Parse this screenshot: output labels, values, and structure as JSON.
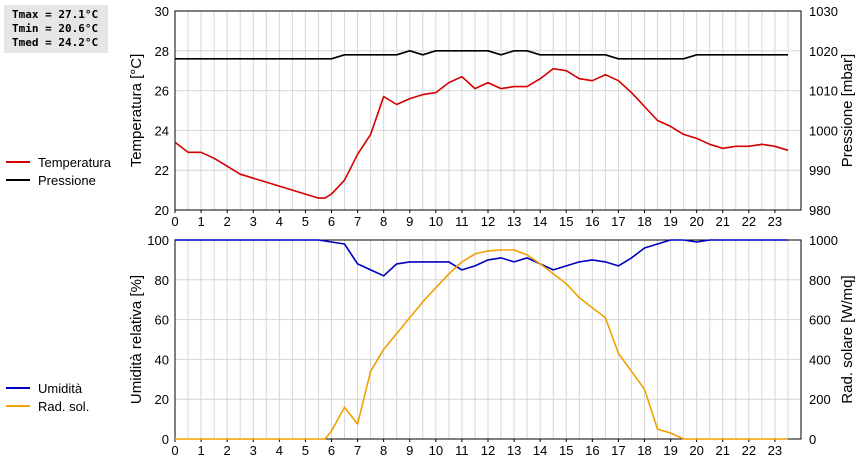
{
  "stats": {
    "tmax": "Tmax = 27.1°C",
    "tmin": "Tmin = 20.6°C",
    "tmed": "Tmed = 24.2°C"
  },
  "legend_top": [
    {
      "label": "Temperatura",
      "color": "#d40000"
    },
    {
      "label": "Pressione",
      "color": "#000000"
    }
  ],
  "legend_bottom": [
    {
      "label": "Umidità",
      "color": "#0000c0"
    },
    {
      "label": "Rad. sol.",
      "color": "#f0a000"
    }
  ],
  "chart_data": [
    {
      "type": "line",
      "xlim": [
        0,
        24
      ],
      "x_ticks": [
        "0",
        "1",
        "2",
        "3",
        "4",
        "5",
        "6",
        "7",
        "8",
        "9",
        "10",
        "11",
        "12",
        "13",
        "14",
        "15",
        "16",
        "17",
        "18",
        "19",
        "20",
        "21",
        "22",
        "23"
      ],
      "ylabel": "Temperatura [°C]",
      "ylim": [
        20,
        30
      ],
      "y_ticks": [
        "20",
        "22",
        "24",
        "26",
        "28",
        "30"
      ],
      "y2label": "Pressione [mbar]",
      "y2lim": [
        980,
        1030
      ],
      "y2_ticks": [
        "980",
        "990",
        "1000",
        "1010",
        "1020",
        "1030"
      ],
      "grid": true,
      "series": [
        {
          "name": "Temperatura",
          "axis": "left",
          "color": "#d40000",
          "x": [
            0,
            0.5,
            1,
            1.5,
            2,
            2.5,
            3,
            3.5,
            4,
            4.5,
            5,
            5.5,
            5.75,
            6,
            6.5,
            7,
            7.5,
            8,
            8.5,
            9,
            9.5,
            10,
            10.5,
            11,
            11.5,
            12,
            12.5,
            13,
            13.5,
            14,
            14.5,
            15,
            15.5,
            16,
            16.5,
            17,
            17.5,
            18,
            18.5,
            19,
            19.5,
            20,
            20.5,
            21,
            21.5,
            22,
            22.5,
            23,
            23.5
          ],
          "values": [
            23.4,
            22.9,
            22.9,
            22.6,
            22.2,
            21.8,
            21.6,
            21.4,
            21.2,
            21.0,
            20.8,
            20.6,
            20.6,
            20.8,
            21.5,
            22.8,
            23.8,
            25.7,
            25.3,
            25.6,
            25.8,
            25.9,
            26.4,
            26.7,
            26.1,
            26.4,
            26.1,
            26.2,
            26.2,
            26.6,
            27.1,
            27.0,
            26.6,
            26.5,
            26.8,
            26.5,
            25.9,
            25.2,
            24.5,
            24.2,
            23.8,
            23.6,
            23.3,
            23.1,
            23.2,
            23.2,
            23.3,
            23.2,
            23.0
          ]
        },
        {
          "name": "Pressione",
          "axis": "right",
          "color": "#000000",
          "x": [
            0,
            1,
            2,
            3,
            4,
            5,
            5.5,
            6,
            6.5,
            7,
            7.5,
            8,
            8.5,
            9,
            9.5,
            10,
            10.5,
            11,
            11.5,
            12,
            12.5,
            13,
            13.5,
            14,
            14.5,
            15,
            15.5,
            16,
            16.5,
            17,
            17.5,
            18,
            18.5,
            19,
            19.5,
            20,
            20.5,
            21,
            21.5,
            22,
            22.5,
            23,
            23.5
          ],
          "values": [
            1018,
            1018,
            1018,
            1018,
            1018,
            1018,
            1018,
            1018,
            1019,
            1019,
            1019,
            1019,
            1019,
            1020,
            1019,
            1020,
            1020,
            1020,
            1020,
            1020,
            1019,
            1020,
            1020,
            1019,
            1019,
            1019,
            1019,
            1019,
            1019,
            1018,
            1018,
            1018,
            1018,
            1018,
            1018,
            1019,
            1019,
            1019,
            1019,
            1019,
            1019,
            1019,
            1019
          ]
        }
      ]
    },
    {
      "type": "line",
      "xlim": [
        0,
        24
      ],
      "x_ticks": [
        "0",
        "1",
        "2",
        "3",
        "4",
        "5",
        "6",
        "7",
        "8",
        "9",
        "10",
        "11",
        "12",
        "13",
        "14",
        "15",
        "16",
        "17",
        "18",
        "19",
        "20",
        "21",
        "22",
        "23"
      ],
      "ylabel": "Umidità relativa [%]",
      "ylim": [
        0,
        100
      ],
      "y_ticks": [
        "0",
        "20",
        "40",
        "60",
        "80",
        "100"
      ],
      "y2label": "Rad. solare [W/mq]",
      "y2lim": [
        0,
        1000
      ],
      "y2_ticks": [
        "0",
        "200",
        "400",
        "600",
        "800",
        "1000"
      ],
      "grid": true,
      "series": [
        {
          "name": "Umidità",
          "axis": "left",
          "color": "#0000c0",
          "x": [
            0,
            1,
            2,
            3,
            4,
            5,
            5.5,
            6,
            6.5,
            7,
            7.5,
            8,
            8.5,
            9,
            9.5,
            10,
            10.5,
            11,
            11.5,
            12,
            12.5,
            13,
            13.5,
            14,
            14.5,
            15,
            15.5,
            16,
            16.5,
            17,
            17.5,
            18,
            18.5,
            19,
            19.5,
            20,
            20.5,
            21,
            21.5,
            22,
            22.5,
            23,
            23.5
          ],
          "values": [
            100,
            100,
            100,
            100,
            100,
            100,
            100,
            99,
            98,
            88,
            85,
            82,
            88,
            89,
            89,
            89,
            89,
            85,
            87,
            90,
            91,
            89,
            91,
            88,
            85,
            87,
            89,
            90,
            89,
            87,
            91,
            96,
            98,
            100,
            100,
            99,
            100,
            100,
            100,
            100,
            100,
            100,
            100
          ]
        },
        {
          "name": "Rad. sol.",
          "axis": "right",
          "color": "#f0a000",
          "x": [
            0,
            1,
            2,
            3,
            4,
            5,
            5.5,
            5.75,
            6,
            6.5,
            7,
            7.5,
            8,
            8.5,
            9,
            9.5,
            10,
            10.5,
            11,
            11.5,
            12,
            12.5,
            13,
            13.5,
            14,
            14.5,
            15,
            15.5,
            16,
            16.5,
            17,
            17.5,
            18,
            18.5,
            19,
            19.5,
            20,
            21,
            22,
            23,
            23.5
          ],
          "values": [
            0,
            0,
            0,
            0,
            0,
            0,
            0,
            0,
            40,
            160,
            75,
            340,
            450,
            530,
            610,
            690,
            760,
            830,
            890,
            930,
            945,
            950,
            950,
            925,
            880,
            830,
            780,
            710,
            660,
            610,
            430,
            340,
            250,
            50,
            30,
            0,
            0,
            0,
            0,
            0,
            0
          ]
        }
      ]
    }
  ]
}
